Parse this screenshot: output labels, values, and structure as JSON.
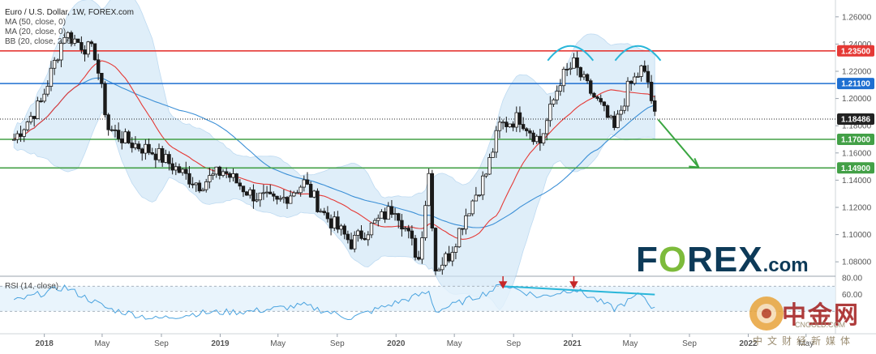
{
  "legend": {
    "title": "Euro / U.S. Dollar, 1W, FOREX.com",
    "ma50": "MA (50, close, 0)",
    "ma20": "MA (20, close, 0)",
    "bb": "BB (20, close, 2, 0)",
    "rsi": "RSI (14, close)"
  },
  "watermark": {
    "forex_pre": "F",
    "forex_o": "O",
    "forex_post": "REX",
    "forex_dot": ".com",
    "cn_big": "中金网",
    "cn_domain": "CNGOLD.COM",
    "cn_sub": "中文财经新媒体"
  },
  "colors": {
    "resistance": "#e53935",
    "pivot": "#1e6fd1",
    "support": "#43a047",
    "ma20": "#e53935",
    "ma50": "#3b8fd6",
    "band": "#cfe6f7",
    "rsi": "#4aa3df",
    "up": "#1a1a1a",
    "down": "#1a1a1a",
    "arrow": "#3aa641",
    "divergence": "#29b6d9",
    "marker": "#c62828"
  },
  "chart_data": [
    {
      "type": "candlestick",
      "symbol": "Euro / U.S. Dollar",
      "timeframe": "1W",
      "source": "FOREX.com",
      "ylim": [
        1.07,
        1.27
      ],
      "y_ticks": [
        "1.26000",
        "1.24000",
        "1.22000",
        "1.20000",
        "1.18000",
        "1.16000",
        "1.14000",
        "1.12000",
        "1.10000",
        "1.08000"
      ],
      "x_ticks": [
        "2018",
        "May",
        "Sep",
        "2019",
        "May",
        "Sep",
        "2020",
        "May",
        "Sep",
        "2021",
        "May",
        "Sep",
        "2022",
        "May"
      ],
      "time_range": [
        "2017-10",
        "2022-07"
      ],
      "close_path": [
        [
          "2017-10-30",
          1.17
        ],
        [
          "2017-12-25",
          1.197
        ],
        [
          "2018-02-12",
          1.248
        ],
        [
          "2018-04-16",
          1.233
        ],
        [
          "2018-05-14",
          1.178
        ],
        [
          "2018-06-25",
          1.168
        ],
        [
          "2018-08-20",
          1.16
        ],
        [
          "2018-10-22",
          1.143
        ],
        [
          "2018-11-19",
          1.137
        ],
        [
          "2019-01-07",
          1.147
        ],
        [
          "2019-03-04",
          1.13
        ],
        [
          "2019-04-29",
          1.123
        ],
        [
          "2019-06-24",
          1.138
        ],
        [
          "2019-08-05",
          1.115
        ],
        [
          "2019-09-30",
          1.094
        ],
        [
          "2019-11-18",
          1.108
        ],
        [
          "2019-12-30",
          1.121
        ],
        [
          "2020-02-17",
          1.082
        ],
        [
          "2020-03-09",
          1.145
        ],
        [
          "2020-03-23",
          1.075
        ],
        [
          "2020-04-20",
          1.085
        ],
        [
          "2020-05-25",
          1.115
        ],
        [
          "2020-07-06",
          1.145
        ],
        [
          "2020-08-03",
          1.18
        ],
        [
          "2020-09-14",
          1.186
        ],
        [
          "2020-10-26",
          1.168
        ],
        [
          "2020-12-07",
          1.214
        ],
        [
          "2021-01-04",
          1.225
        ],
        [
          "2021-01-25",
          1.212
        ],
        [
          "2021-03-01",
          1.194
        ],
        [
          "2021-03-29",
          1.177
        ],
        [
          "2021-04-26",
          1.207
        ],
        [
          "2021-05-24",
          1.221
        ],
        [
          "2021-06-07",
          1.212
        ],
        [
          "2021-06-21",
          1.186
        ]
      ],
      "horizontal_levels": [
        {
          "value": 1.235,
          "label": "1.23500",
          "color": "#e53935"
        },
        {
          "value": 1.211,
          "label": "1.21100",
          "color": "#1e6fd1"
        },
        {
          "value": 1.18486,
          "label": "1.18486",
          "color": "#222222",
          "style": "dotted"
        },
        {
          "value": 1.17,
          "label": "1.17000",
          "color": "#43a047"
        },
        {
          "value": 1.149,
          "label": "1.14900",
          "color": "#43a047"
        }
      ],
      "indicators": [
        "MA (50, close, 0)",
        "MA (20, close, 0)",
        "BB (20, close, 2, 0)"
      ],
      "annotations": [
        "double-top arcs near 1.235",
        "green arrow pointing down toward 1.149"
      ]
    },
    {
      "type": "line",
      "name": "RSI (14, close)",
      "ylim": [
        20,
        80
      ],
      "y_ticks": [
        "80.00",
        "60.00"
      ],
      "band": [
        40,
        70
      ],
      "path": [
        [
          "2017-10-30",
          52
        ],
        [
          "2018-02-12",
          69
        ],
        [
          "2018-05-14",
          43
        ],
        [
          "2018-08-20",
          31
        ],
        [
          "2018-11-19",
          38
        ],
        [
          "2019-03-04",
          40
        ],
        [
          "2019-06-24",
          47
        ],
        [
          "2019-09-30",
          32
        ],
        [
          "2019-12-30",
          50
        ],
        [
          "2020-03-09",
          63
        ],
        [
          "2020-03-23",
          40
        ],
        [
          "2020-07-06",
          62
        ],
        [
          "2020-08-10",
          72
        ],
        [
          "2020-10-26",
          57
        ],
        [
          "2021-01-04",
          67
        ],
        [
          "2021-03-29",
          43
        ],
        [
          "2021-05-24",
          61
        ],
        [
          "2021-06-21",
          42
        ]
      ],
      "divergence_line": [
        [
          "2020-08-10",
          70
        ],
        [
          "2021-06-21",
          60
        ]
      ],
      "markers": [
        "2020-08-10",
        "2021-01-04"
      ]
    }
  ]
}
